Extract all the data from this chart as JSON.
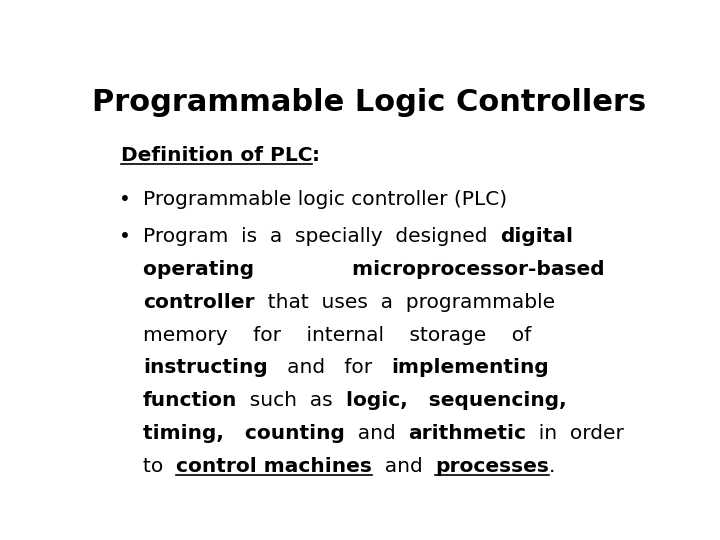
{
  "title": "Programmable Logic Controllers",
  "background_color": "#ffffff",
  "text_color": "#000000",
  "title_fontsize": 22,
  "body_fontsize": 14.5,
  "bullet1": "Programmable logic controller (PLC)",
  "lines": [
    [
      {
        "text": "Program  is  a  specially  designed  ",
        "bold": false,
        "underline": false
      },
      {
        "text": "digital",
        "bold": true,
        "underline": false
      }
    ],
    [
      {
        "text": "operating              microprocessor-based",
        "bold": true,
        "underline": false
      }
    ],
    [
      {
        "text": "controller",
        "bold": true,
        "underline": false
      },
      {
        "text": "  that  uses  a  programmable",
        "bold": false,
        "underline": false
      }
    ],
    [
      {
        "text": "memory    for    internal    storage    of",
        "bold": false,
        "underline": false
      }
    ],
    [
      {
        "text": "instructing",
        "bold": true,
        "underline": false
      },
      {
        "text": "   and   for   ",
        "bold": false,
        "underline": false
      },
      {
        "text": "implementing",
        "bold": true,
        "underline": false
      }
    ],
    [
      {
        "text": "function",
        "bold": true,
        "underline": false
      },
      {
        "text": "  such  as  ",
        "bold": false,
        "underline": false
      },
      {
        "text": "logic,   sequencing,",
        "bold": true,
        "underline": false
      }
    ],
    [
      {
        "text": "timing,   counting",
        "bold": true,
        "underline": false
      },
      {
        "text": "  and  ",
        "bold": false,
        "underline": false
      },
      {
        "text": "arithmetic",
        "bold": true,
        "underline": false
      },
      {
        "text": "  in  order",
        "bold": false,
        "underline": false
      }
    ],
    [
      {
        "text": "to  ",
        "bold": false,
        "underline": false
      },
      {
        "text": "control machines",
        "bold": true,
        "underline": true
      },
      {
        "text": "  and  ",
        "bold": false,
        "underline": false
      },
      {
        "text": "processes",
        "bold": true,
        "underline": true
      },
      {
        "text": ".",
        "bold": false,
        "underline": false
      }
    ]
  ]
}
